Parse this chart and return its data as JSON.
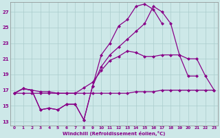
{
  "xlabel": "Windchill (Refroidissement éolien,°C)",
  "bg_color": "#cde8e8",
  "line_color": "#880088",
  "grid_color": "#aacccc",
  "xlim_min": -0.5,
  "xlim_max": 23.4,
  "ylim_min": 12.5,
  "ylim_max": 28.2,
  "yticks": [
    13,
    15,
    17,
    19,
    21,
    23,
    25,
    27
  ],
  "xticks": [
    0,
    1,
    2,
    3,
    4,
    5,
    6,
    7,
    8,
    9,
    10,
    11,
    12,
    13,
    14,
    15,
    16,
    17,
    18,
    19,
    20,
    21,
    22,
    23
  ],
  "line_A_x": [
    0,
    1,
    2,
    3,
    4,
    5,
    6,
    7,
    8,
    9,
    10,
    11,
    12,
    13,
    14,
    15,
    16,
    17,
    18,
    19,
    20,
    21,
    22,
    23
  ],
  "line_A_y": [
    16.6,
    17.2,
    17.0,
    14.5,
    14.7,
    14.5,
    15.2,
    15.2,
    13.2,
    17.5,
    21.5,
    23.0,
    25.2,
    26.0,
    27.7,
    28.0,
    27.3,
    25.5,
    null,
    null,
    null,
    null,
    null,
    null
  ],
  "line_B_x": [
    0,
    1,
    2,
    3,
    4,
    5,
    6,
    7,
    8,
    9,
    10,
    11,
    12,
    13,
    14,
    15,
    16,
    17,
    18,
    19,
    20,
    21,
    22,
    23
  ],
  "line_B_y": [
    16.6,
    17.2,
    17.0,
    14.5,
    14.7,
    14.5,
    15.2,
    15.2,
    13.2,
    17.5,
    20.0,
    21.5,
    22.5,
    23.5,
    24.5,
    25.5,
    27.7,
    27.0,
    25.5,
    21.5,
    18.8,
    18.8,
    null,
    null
  ],
  "line_C_x": [
    0,
    1,
    2,
    3,
    4,
    5,
    6,
    7,
    8,
    9,
    10,
    11,
    12,
    13,
    14,
    15,
    16,
    17,
    18,
    19,
    20,
    21,
    22,
    23
  ],
  "line_C_y": [
    16.6,
    17.2,
    17.0,
    16.8,
    16.8,
    16.6,
    16.6,
    16.6,
    17.3,
    18.0,
    19.5,
    20.8,
    21.3,
    22.0,
    21.8,
    21.3,
    21.3,
    21.5,
    21.5,
    21.5,
    21.0,
    21.0,
    18.8,
    17.0
  ],
  "line_D_x": [
    0,
    1,
    2,
    3,
    4,
    5,
    6,
    7,
    8,
    9,
    10,
    11,
    12,
    13,
    14,
    15,
    16,
    17,
    18,
    19,
    20,
    21,
    22,
    23
  ],
  "line_D_y": [
    16.6,
    16.6,
    16.6,
    16.6,
    16.6,
    16.6,
    16.6,
    16.6,
    16.6,
    16.6,
    16.6,
    16.6,
    16.6,
    16.6,
    16.8,
    16.8,
    16.8,
    17.0,
    17.0,
    17.0,
    17.0,
    17.0,
    17.0,
    17.0
  ]
}
